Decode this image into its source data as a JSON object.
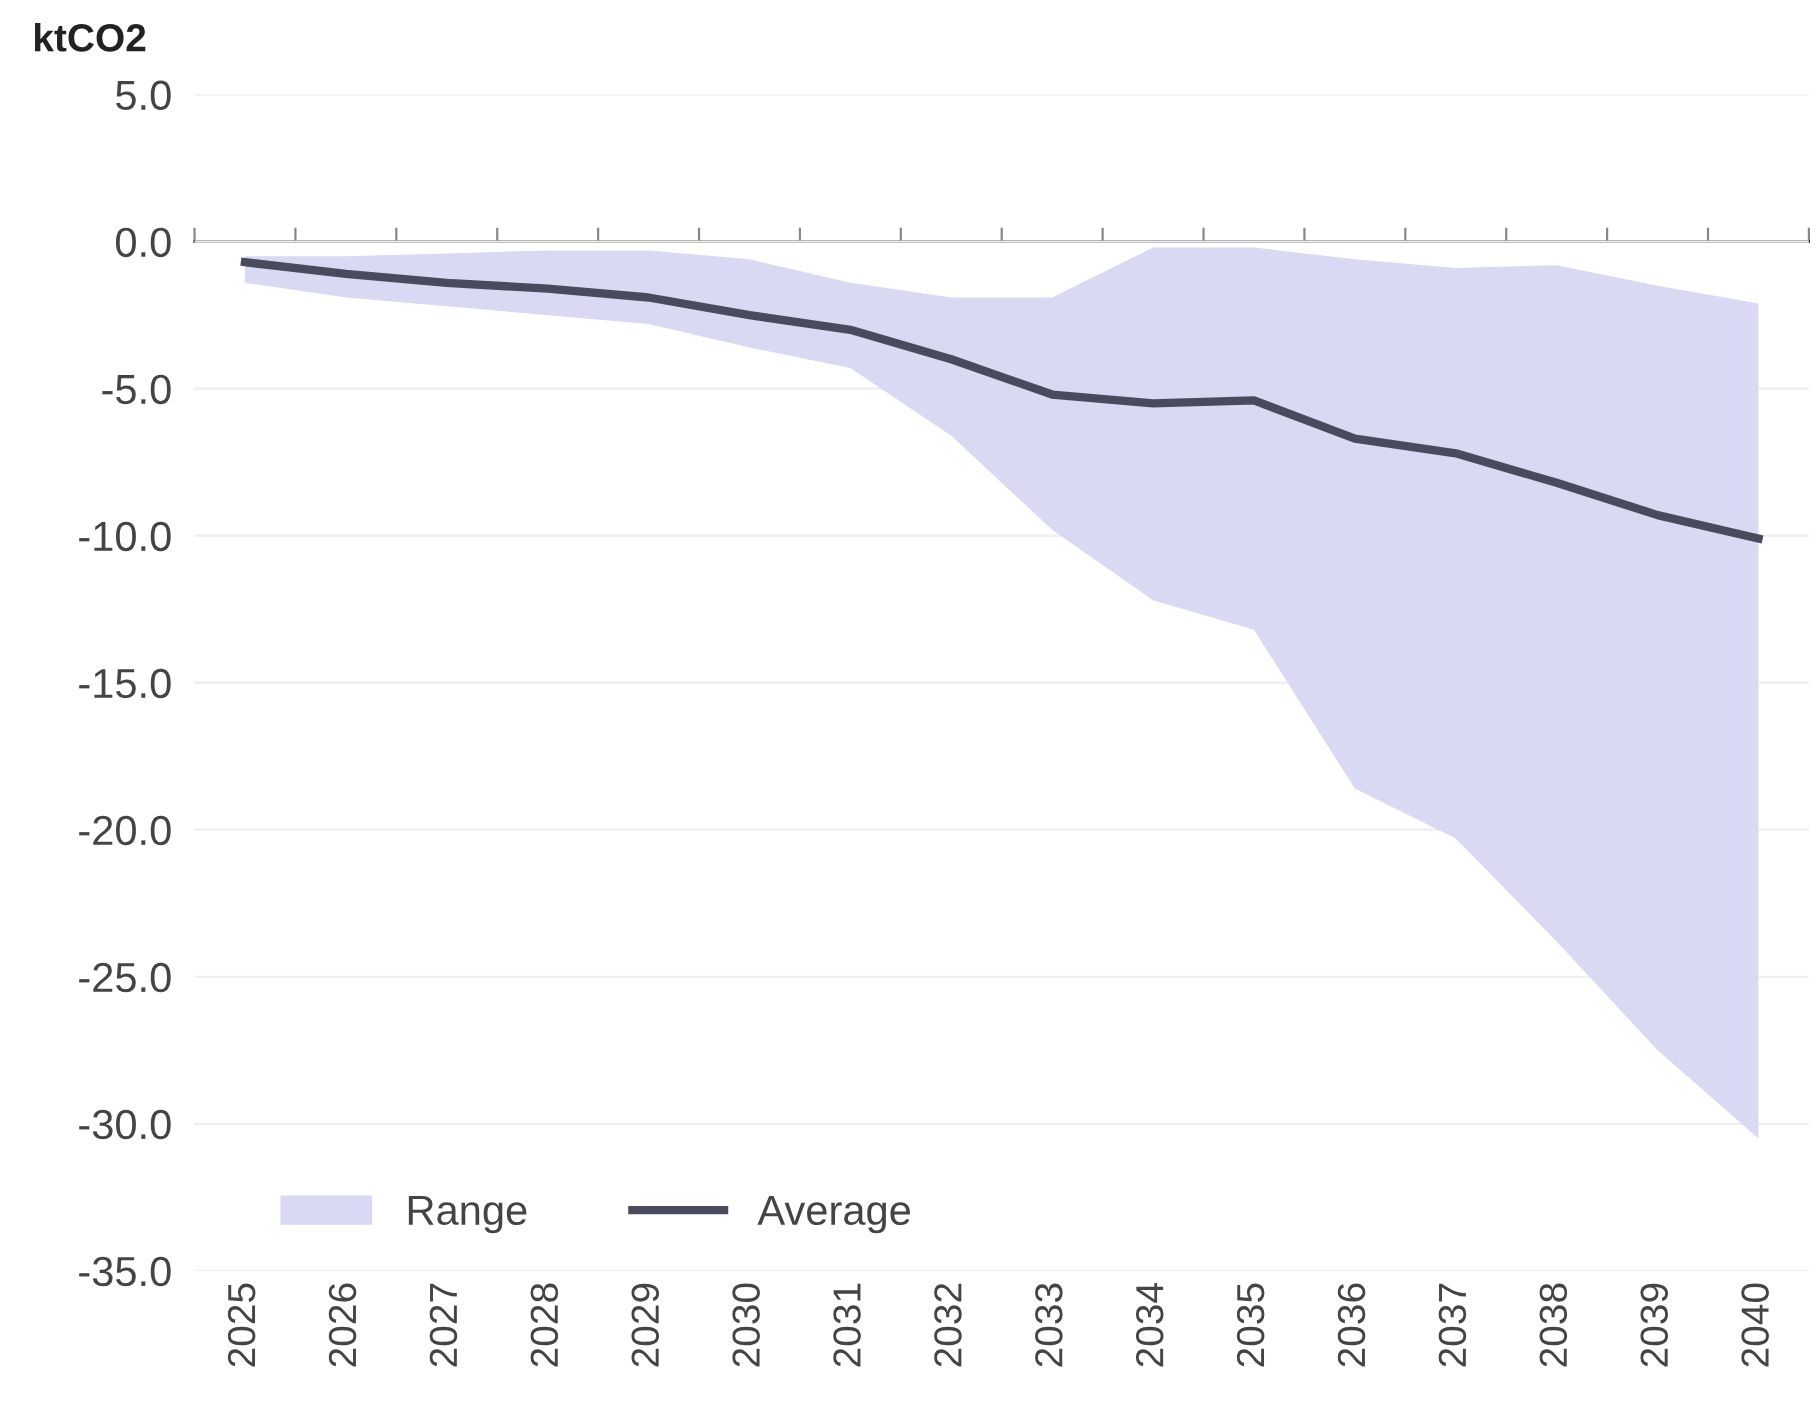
{
  "chart_data": {
    "type": "line",
    "ylabel": "ktCO2",
    "categories": [
      "2025",
      "2026",
      "2027",
      "2028",
      "2029",
      "2030",
      "2031",
      "2032",
      "2033",
      "2034",
      "2035",
      "2036",
      "2037",
      "2038",
      "2039",
      "2040"
    ],
    "series": [
      {
        "name": "Range",
        "type": "area",
        "color": "#d9d9f3",
        "values": [
          null,
          null,
          null,
          null,
          null,
          null,
          null,
          null,
          null,
          null,
          null,
          null,
          null,
          null,
          null,
          null
        ],
        "lower": [
          -1.4,
          -1.9,
          -2.2,
          -2.5,
          -2.8,
          -3.6,
          -4.3,
          -6.6,
          -9.8,
          -12.2,
          -13.2,
          -18.6,
          -20.3,
          -23.8,
          -27.5,
          -30.5
        ],
        "upper": [
          -0.5,
          -0.5,
          -0.4,
          -0.3,
          -0.3,
          -0.6,
          -1.4,
          -1.9,
          -1.9,
          -0.2,
          -0.2,
          -0.6,
          -0.9,
          -0.8,
          -1.5,
          -2.1
        ]
      },
      {
        "name": "Average",
        "type": "line",
        "color": "#4a4a5e",
        "values": [
          -0.7,
          -1.1,
          -1.4,
          -1.6,
          -1.9,
          -2.5,
          -3.0,
          -4.0,
          -5.2,
          -5.5,
          -5.4,
          -6.7,
          -7.2,
          -8.2,
          -9.3,
          -10.1
        ]
      }
    ],
    "ylim": [
      -35,
      5
    ],
    "yticks": [
      {
        "value": 5,
        "label": "5.0"
      },
      {
        "value": 0,
        "label": "0.0"
      },
      {
        "value": -5,
        "label": "-5.0"
      },
      {
        "value": -10,
        "label": "-10.0"
      },
      {
        "value": -15,
        "label": "-15.0"
      },
      {
        "value": -20,
        "label": "-20.0"
      },
      {
        "value": -25,
        "label": "-25.0"
      },
      {
        "value": -30,
        "label": "-30.0"
      },
      {
        "value": -35,
        "label": "-35.0"
      }
    ],
    "grid": "y",
    "legend": "bottom left"
  }
}
